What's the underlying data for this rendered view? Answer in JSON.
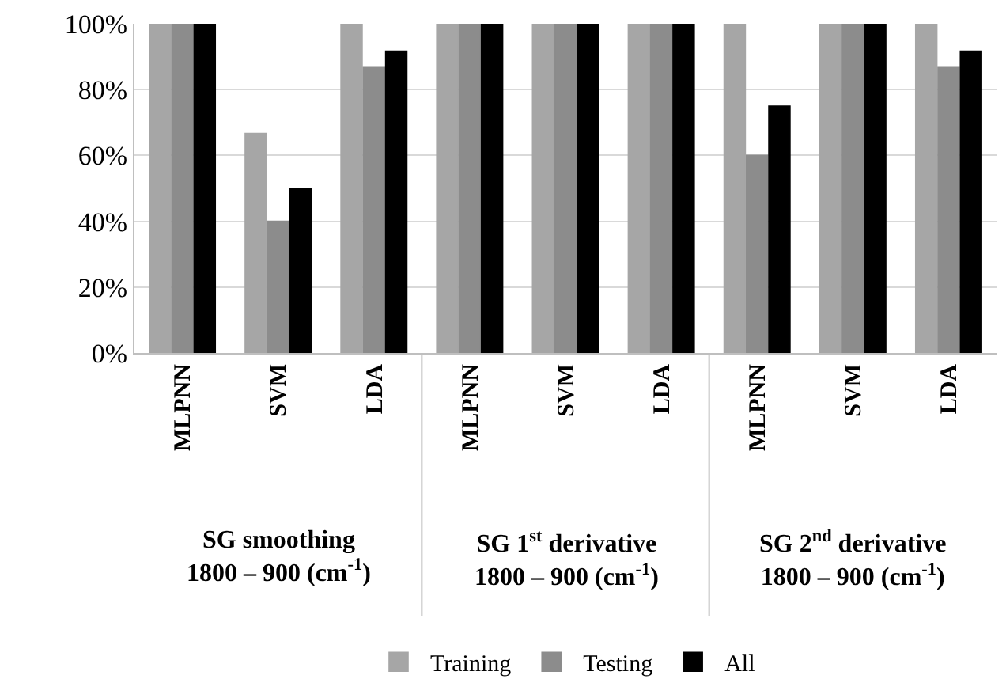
{
  "chart_data": {
    "type": "bar",
    "categories": [
      "MLPNN",
      "SVM",
      "LDA",
      "MLPNN",
      "SVM",
      "LDA",
      "MLPNN",
      "SVM",
      "LDA"
    ],
    "series": [
      {
        "name": "Training",
        "color": "#a6a6a6",
        "values": [
          100,
          66.7,
          100,
          100,
          100,
          100,
          100,
          100,
          100
        ]
      },
      {
        "name": "Testing",
        "color": "#8c8c8c",
        "values": [
          100,
          40,
          86.7,
          100,
          100,
          100,
          60,
          100,
          86.7
        ]
      },
      {
        "name": "All",
        "color": "#000000",
        "values": [
          100,
          50,
          91.7,
          100,
          100,
          100,
          75,
          100,
          91.7
        ]
      }
    ],
    "ylim": [
      0,
      100
    ],
    "yticks": [
      {
        "value": 0,
        "label": "0%"
      },
      {
        "value": 20,
        "label": "20%"
      },
      {
        "value": 40,
        "label": "40%"
      },
      {
        "value": 60,
        "label": "60%"
      },
      {
        "value": 80,
        "label": "80%"
      },
      {
        "value": 100,
        "label": "100%"
      }
    ],
    "annotations": [
      "SG smoothing\n1800 – 900 (cm$^{-1}$)",
      "SG 1$^{st}$ derivative\n1800 – 900 (cm$^{-1}$)",
      "SG 2$^{nd}$ derivative\n1800 – 900 (cm$^{-1}$)"
    ],
    "grid": "y",
    "legend": "bottom"
  }
}
